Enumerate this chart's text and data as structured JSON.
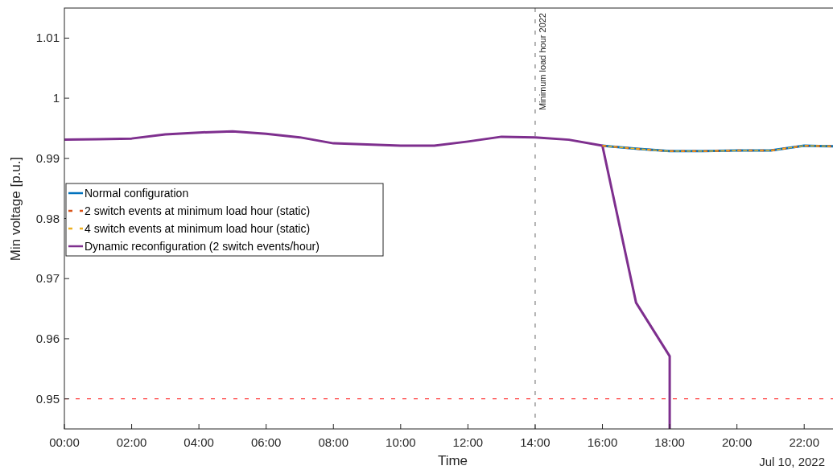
{
  "chart_data": {
    "type": "line",
    "xlabel": "Time",
    "ylabel": "Min voltage [p.u.]",
    "xlim": [
      0,
      23
    ],
    "xticks": [
      {
        "value": 0,
        "label": "00:00"
      },
      {
        "value": 2,
        "label": "02:00"
      },
      {
        "value": 4,
        "label": "04:00"
      },
      {
        "value": 6,
        "label": "06:00"
      },
      {
        "value": 8,
        "label": "08:00"
      },
      {
        "value": 10,
        "label": "10:00"
      },
      {
        "value": 12,
        "label": "12:00"
      },
      {
        "value": 14,
        "label": "14:00"
      },
      {
        "value": 16,
        "label": "16:00"
      },
      {
        "value": 18,
        "label": "18:00"
      },
      {
        "value": 20,
        "label": "20:00"
      },
      {
        "value": 22,
        "label": "22:00"
      }
    ],
    "ylim": [
      0.945,
      1.015
    ],
    "yticks": [
      0.95,
      0.96,
      0.97,
      0.98,
      0.99,
      1,
      1.01
    ],
    "series": [
      {
        "name": "Normal configuration",
        "color": "#0072bd",
        "line_style": "solid",
        "x": [
          16,
          17,
          18,
          19,
          20,
          21,
          22,
          23
        ],
        "values": [
          0.9921,
          0.9916,
          0.9912,
          0.9912,
          0.9913,
          0.9913,
          0.9921,
          0.992
        ]
      },
      {
        "name": "2 switch events at minimum load hour (static)",
        "color": "#d95319",
        "line_style": "dashed",
        "x": [
          16,
          17,
          18,
          19,
          20,
          21,
          22,
          23
        ],
        "values": [
          0.9921,
          0.9916,
          0.9912,
          0.9912,
          0.9913,
          0.9913,
          0.9921,
          0.992
        ]
      },
      {
        "name": "4 switch events at minimum load hour (static)",
        "color": "#edb120",
        "line_style": "dashed",
        "x": [
          16,
          17,
          18,
          19,
          20,
          21,
          22,
          23
        ],
        "values": [
          0.9921,
          0.9916,
          0.9912,
          0.9912,
          0.9913,
          0.9913,
          0.9921,
          0.992
        ]
      },
      {
        "name": "Dynamic reconfiguration (2 switch events/hour)",
        "color": "#7e2f8e",
        "line_style": "solid",
        "x": [
          0,
          1,
          2,
          3,
          4,
          5,
          6,
          7,
          8,
          9,
          10,
          11,
          12,
          13,
          14,
          15,
          16,
          17,
          18,
          18
        ],
        "values": [
          0.9931,
          0.9932,
          0.9933,
          0.994,
          0.9943,
          0.9945,
          0.9941,
          0.9935,
          0.9925,
          0.9923,
          0.9921,
          0.9921,
          0.9928,
          0.9936,
          0.9935,
          0.9931,
          0.9921,
          0.966,
          0.9571,
          0.945
        ]
      }
    ],
    "ref_lines": [
      {
        "axis": "x",
        "value": 14,
        "label": "Minimum load hour 2022",
        "color": "#666666",
        "line_style": "dashed"
      },
      {
        "axis": "y",
        "value": 0.95,
        "label": null,
        "color": "#ff0000",
        "line_style": "dashed"
      }
    ],
    "annotations": [
      "Jul 10, 2022"
    ],
    "legend": "left",
    "grid": false,
    "marker": "none"
  }
}
